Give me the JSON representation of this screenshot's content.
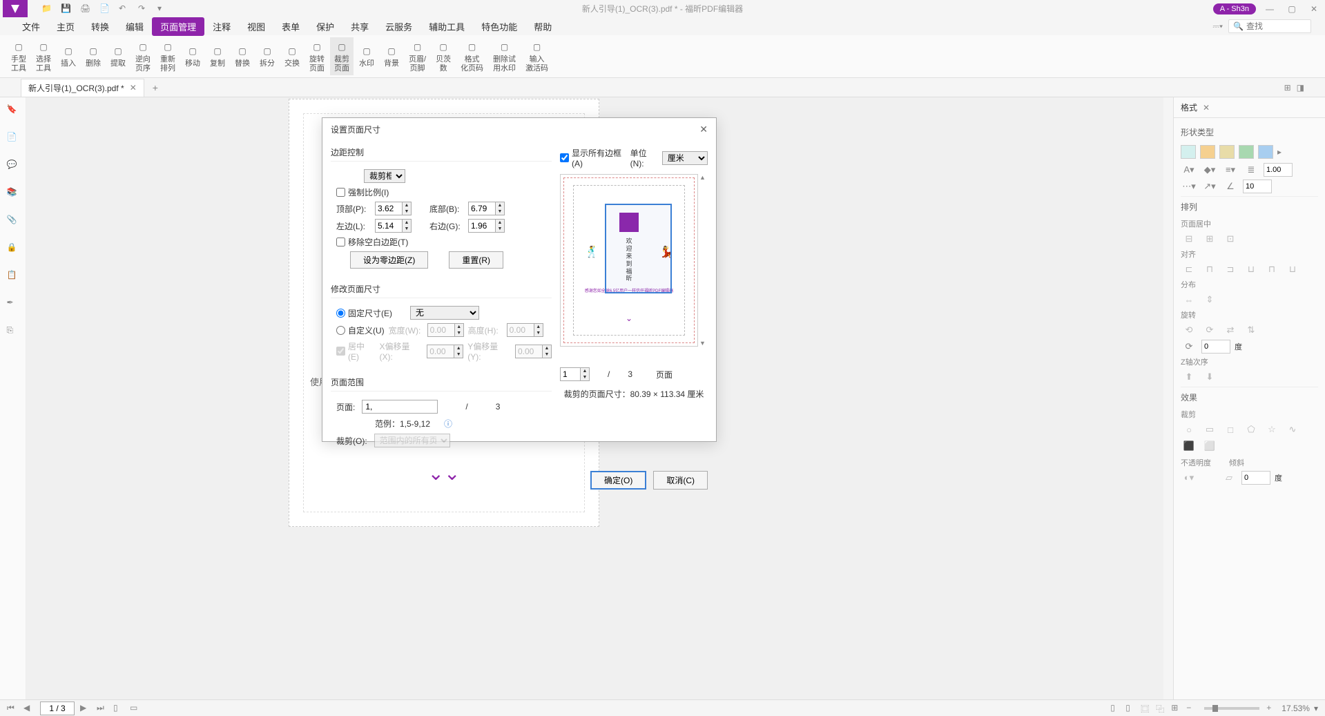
{
  "titlebar": {
    "title": "新人引导(1)_OCR(3).pdf * - 福昕PDF编辑器",
    "user_badge": "A - Sh3n"
  },
  "menu": {
    "items": [
      "文件",
      "主页",
      "转换",
      "编辑",
      "页面管理",
      "注释",
      "视图",
      "表单",
      "保护",
      "共享",
      "云服务",
      "辅助工具",
      "特色功能",
      "帮助"
    ],
    "active_index": 4,
    "search_placeholder": "查找"
  },
  "ribbon": {
    "items": [
      {
        "label": "手型\n工具"
      },
      {
        "label": "选择\n工具"
      },
      {
        "label": "插入"
      },
      {
        "label": "删除"
      },
      {
        "label": "提取"
      },
      {
        "label": "逆向\n页序"
      },
      {
        "label": "重新\n排列"
      },
      {
        "label": "移动"
      },
      {
        "label": "复制"
      },
      {
        "label": "替换"
      },
      {
        "label": "拆分"
      },
      {
        "label": "交换"
      },
      {
        "label": "旋转\n页面"
      },
      {
        "label": "裁剪\n页面",
        "active": true
      },
      {
        "label": "水印"
      },
      {
        "label": "背景"
      },
      {
        "label": "页眉/\n页脚"
      },
      {
        "label": "贝茨\n数"
      },
      {
        "label": "格式\n化页码"
      },
      {
        "label": "删除试\n用水印"
      },
      {
        "label": "输入\n激活码"
      }
    ]
  },
  "doctab": {
    "name": "新人引导(1)_OCR(3).pdf *"
  },
  "dialog": {
    "title": "设置页面尺寸",
    "margin_group": "边距控制",
    "crop_type": "裁剪框",
    "show_all": "显示所有边框(A)",
    "unit_label": "单位(N):",
    "unit_value": "厘米",
    "force_ratio": "强制比例(I)",
    "top_label": "顶部(P):",
    "top_val": "3.62",
    "bottom_label": "底部(B):",
    "bottom_val": "6.79",
    "left_label": "左边(L):",
    "left_val": "5.14",
    "right_label": "右边(G):",
    "right_val": "1.96",
    "remove_white": "移除空白边距(T)",
    "zero_btn": "设为零边距(Z)",
    "reset_btn": "重置(R)",
    "size_group": "修改页面尺寸",
    "fixed_size": "固定尺寸(E)",
    "fixed_val": "无",
    "custom_size": "自定义(U)",
    "width_label": "宽度(W):",
    "width_val": "0.00",
    "height_label": "高度(H):",
    "height_val": "0.00",
    "center": "居中(E)",
    "xoff_label": "X偏移量(X):",
    "xoff_val": "0.00",
    "yoff_label": "Y偏移量(Y):",
    "yoff_val": "0.00",
    "range_group": "页面范围",
    "page_label": "页面:",
    "page_val": "1,",
    "total": "3",
    "example": "范例：1,5-9,12",
    "crop_label": "裁剪(O):",
    "crop_val": "范围内的所有页面",
    "spin_val": "1",
    "pages_word": "页面",
    "crop_size": "裁剪的页面尺寸：80.39 × 113.34  厘米",
    "ok": "确定(O)",
    "cancel": "取消(C)"
  },
  "rightpanel": {
    "tab": "格式",
    "shape_type": "形状类型",
    "colors": [
      "#d4f0ee",
      "#f5d090",
      "#e8dca8",
      "#a8d8b0",
      "#a8cef0"
    ],
    "line_width": "1.00",
    "angle_val": "10",
    "arrange": "排列",
    "page_center": "页面居中",
    "align": "对齐",
    "distribute": "分布",
    "rotate": "旋转",
    "degree_val": "0",
    "degree_unit": "度",
    "zorder": "Z轴次序",
    "effects": "效果",
    "crop": "裁剪",
    "opacity_label": "不透明度",
    "skew_label": "倾斜",
    "skew_val": "0",
    "skew_unit": "度"
  },
  "statusbar": {
    "page": "1 / 3",
    "zoom": "17.53%"
  }
}
